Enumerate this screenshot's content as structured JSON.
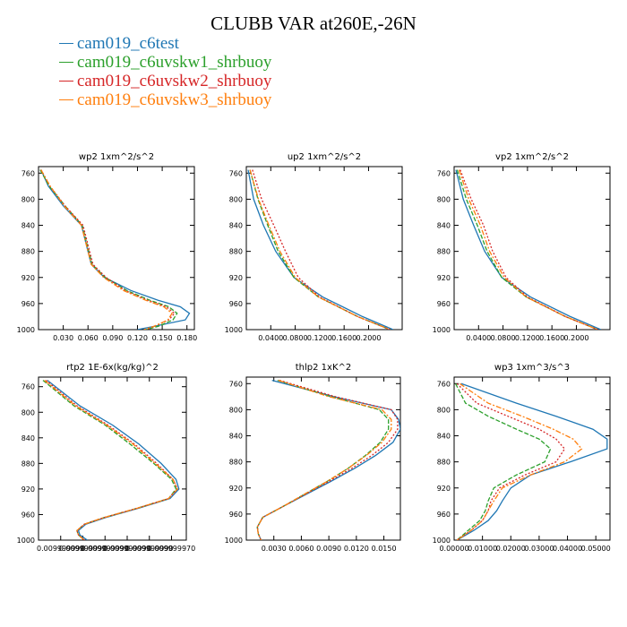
{
  "title": "CLUBB VAR at260E,-26N",
  "legend": [
    {
      "label": "cam019_c6test",
      "color": "#1f77b4"
    },
    {
      "label": "cam019_c6uvskw1_shrbuoy",
      "color": "#2ca02c"
    },
    {
      "label": "cam019_c6uvskw2_shrbuoy",
      "color": "#d62728"
    },
    {
      "label": "cam019_c6uvskw3_shrbuoy",
      "color": "#ff7f0e"
    }
  ],
  "chart_data": [
    {
      "type": "line",
      "title": "wp2   1xm^2/s^2",
      "y_ticks": [
        760,
        800,
        840,
        880,
        920,
        960,
        1000
      ],
      "ylim": [
        750,
        1000
      ],
      "y_reversed": true,
      "xlim": [
        0.0,
        0.189
      ],
      "x_ticks": [
        0.03,
        0.06,
        0.09,
        0.12,
        0.15,
        0.18
      ],
      "x_tick_labels": [
        "0.030",
        "0.060",
        "0.090",
        "0.120",
        "0.150",
        "0.180"
      ],
      "y": [
        755,
        780,
        810,
        840,
        870,
        900,
        920,
        940,
        955,
        965,
        975,
        985,
        995,
        1000
      ],
      "series": [
        {
          "name": "cam019_c6test",
          "x": [
            0.003,
            0.012,
            0.03,
            0.052,
            0.058,
            0.064,
            0.08,
            0.112,
            0.145,
            0.172,
            0.183,
            0.178,
            0.14,
            0.12
          ]
        },
        {
          "name": "cam019_c6uvskw1_shrbuoy",
          "x": [
            0.002,
            0.013,
            0.032,
            0.053,
            0.059,
            0.065,
            0.081,
            0.107,
            0.135,
            0.158,
            0.168,
            0.163,
            0.145,
            0.13
          ]
        },
        {
          "name": "cam019_c6uvskw2_shrbuoy",
          "x": [
            0.003,
            0.014,
            0.032,
            0.054,
            0.06,
            0.066,
            0.082,
            0.105,
            0.132,
            0.155,
            0.165,
            0.158,
            0.14,
            0.13
          ]
        },
        {
          "name": "cam019_c6uvskw3_shrbuoy",
          "x": [
            0.003,
            0.014,
            0.031,
            0.052,
            0.058,
            0.064,
            0.079,
            0.103,
            0.13,
            0.152,
            0.162,
            0.157,
            0.14,
            0.128
          ]
        }
      ]
    },
    {
      "type": "line",
      "title": "up2   1xm^2/s^2",
      "y_ticks": [
        760,
        800,
        840,
        880,
        920,
        960,
        1000
      ],
      "ylim": [
        750,
        1000
      ],
      "y_reversed": true,
      "xlim": [
        0.0,
        0.255
      ],
      "x_ticks": [
        0.04,
        0.08,
        0.12,
        0.16,
        0.2
      ],
      "x_tick_labels": [
        "0.0400",
        "0.0800",
        "0.1200",
        "0.1600",
        "0.2000"
      ],
      "y": [
        755,
        800,
        840,
        880,
        920,
        950,
        980,
        1000
      ],
      "series": [
        {
          "name": "cam019_c6test",
          "x": [
            0.003,
            0.012,
            0.028,
            0.048,
            0.078,
            0.125,
            0.19,
            0.24
          ]
        },
        {
          "name": "cam019_c6uvskw1_shrbuoy",
          "x": [
            0.006,
            0.019,
            0.035,
            0.052,
            0.078,
            0.118,
            0.182,
            0.235
          ]
        },
        {
          "name": "cam019_c6uvskw2_shrbuoy",
          "x": [
            0.01,
            0.025,
            0.045,
            0.064,
            0.085,
            0.12,
            0.182,
            0.235
          ]
        },
        {
          "name": "cam019_c6uvskw3_shrbuoy",
          "x": [
            0.006,
            0.02,
            0.037,
            0.055,
            0.08,
            0.118,
            0.182,
            0.235
          ]
        }
      ]
    },
    {
      "type": "line",
      "title": "vp2   1xm^2/s^2",
      "y_ticks": [
        760,
        800,
        840,
        880,
        920,
        960,
        1000
      ],
      "ylim": [
        750,
        1000
      ],
      "y_reversed": true,
      "xlim": [
        0.0,
        0.255
      ],
      "x_ticks": [
        0.04,
        0.08,
        0.12,
        0.16,
        0.2
      ],
      "x_tick_labels": [
        "0.0400",
        "0.0800",
        "0.1200",
        "0.1600",
        "0.2000"
      ],
      "y": [
        755,
        800,
        840,
        880,
        920,
        950,
        980,
        1000
      ],
      "series": [
        {
          "name": "cam019_c6test",
          "x": [
            0.003,
            0.015,
            0.032,
            0.05,
            0.078,
            0.125,
            0.19,
            0.24
          ]
        },
        {
          "name": "cam019_c6uvskw1_shrbuoy",
          "x": [
            0.005,
            0.02,
            0.038,
            0.054,
            0.078,
            0.118,
            0.182,
            0.235
          ]
        },
        {
          "name": "cam019_c6uvskw2_shrbuoy",
          "x": [
            0.01,
            0.028,
            0.048,
            0.063,
            0.085,
            0.12,
            0.182,
            0.235
          ]
        },
        {
          "name": "cam019_c6uvskw3_shrbuoy",
          "x": [
            0.008,
            0.024,
            0.043,
            0.058,
            0.082,
            0.118,
            0.182,
            0.235
          ]
        }
      ]
    },
    {
      "type": "line",
      "title": "rtp2   1E-6x(kg/kg)^2",
      "y_ticks": [
        760,
        800,
        840,
        880,
        920,
        960,
        1000
      ],
      "ylim": [
        745,
        1000
      ],
      "y_reversed": true,
      "xlim": [
        0.0,
        1.0
      ],
      "x_ticks": [
        0.15,
        0.3,
        0.45,
        0.6,
        0.75,
        0.9
      ],
      "x_tick_labels": [
        "0.009999990",
        "0.009999990",
        "0.009999990",
        "0.009999990",
        "0.009999990",
        "0.009999970"
      ],
      "y": [
        750,
        790,
        820,
        850,
        880,
        905,
        920,
        935,
        950,
        965,
        975,
        985,
        992,
        1000
      ],
      "series": [
        {
          "name": "cam019_c6test",
          "x": [
            0.06,
            0.28,
            0.5,
            0.68,
            0.83,
            0.93,
            0.95,
            0.89,
            0.68,
            0.45,
            0.32,
            0.27,
            0.28,
            0.33
          ]
        },
        {
          "name": "cam019_c6uvskw1_shrbuoy",
          "x": [
            0.03,
            0.24,
            0.45,
            0.62,
            0.78,
            0.9,
            0.93,
            0.88,
            0.67,
            0.44,
            0.31,
            0.26,
            0.27,
            0.31
          ]
        },
        {
          "name": "cam019_c6uvskw2_shrbuoy",
          "x": [
            0.05,
            0.26,
            0.47,
            0.65,
            0.8,
            0.91,
            0.94,
            0.88,
            0.67,
            0.44,
            0.31,
            0.26,
            0.27,
            0.31
          ]
        },
        {
          "name": "cam019_c6uvskw3_shrbuoy",
          "x": [
            0.04,
            0.25,
            0.46,
            0.64,
            0.79,
            0.91,
            0.94,
            0.88,
            0.67,
            0.44,
            0.31,
            0.26,
            0.27,
            0.31
          ]
        }
      ]
    },
    {
      "type": "line",
      "title": "thlp2   1xK^2",
      "y_ticks": [
        760,
        800,
        840,
        880,
        920,
        960,
        1000
      ],
      "ylim": [
        750,
        1000
      ],
      "y_reversed": true,
      "xlim": [
        0.0,
        0.0168
      ],
      "x_ticks": [
        0.003,
        0.006,
        0.009,
        0.012,
        0.015
      ],
      "x_tick_labels": [
        "0.0030",
        "0.0060",
        "0.0090",
        "0.0120",
        "0.0150"
      ],
      "y": [
        755,
        780,
        800,
        815,
        830,
        850,
        870,
        890,
        910,
        930,
        950,
        965,
        980,
        990,
        1000
      ],
      "series": [
        {
          "name": "cam019_c6test",
          "x": [
            0.0028,
            0.0095,
            0.0158,
            0.0166,
            0.0168,
            0.016,
            0.0141,
            0.0118,
            0.0092,
            0.0065,
            0.0038,
            0.0018,
            0.0012,
            0.0013,
            0.0016
          ]
        },
        {
          "name": "cam019_c6uvskw1_shrbuoy",
          "x": [
            0.0034,
            0.0092,
            0.0145,
            0.0155,
            0.0155,
            0.0146,
            0.013,
            0.0111,
            0.0088,
            0.0063,
            0.0038,
            0.0018,
            0.0012,
            0.0013,
            0.0016
          ]
        },
        {
          "name": "cam019_c6uvskw2_shrbuoy",
          "x": [
            0.0036,
            0.0097,
            0.0158,
            0.0165,
            0.0165,
            0.0155,
            0.0137,
            0.0115,
            0.009,
            0.0064,
            0.0038,
            0.0018,
            0.0012,
            0.0013,
            0.0016
          ]
        },
        {
          "name": "cam019_c6uvskw3_shrbuoy",
          "x": [
            0.0035,
            0.009,
            0.0148,
            0.0158,
            0.0158,
            0.0148,
            0.0131,
            0.0111,
            0.0088,
            0.0063,
            0.0038,
            0.0018,
            0.0012,
            0.0013,
            0.0016
          ]
        }
      ]
    },
    {
      "type": "line",
      "title": "wp3   1xm^3/s^3",
      "y_ticks": [
        760,
        800,
        840,
        880,
        920,
        960,
        1000
      ],
      "ylim": [
        750,
        1000
      ],
      "y_reversed": true,
      "xlim": [
        0.0,
        0.055
      ],
      "x_ticks": [
        0.0,
        0.01,
        0.02,
        0.03,
        0.04,
        0.05
      ],
      "x_tick_labels": [
        "0.00000",
        "0.01000",
        "0.02000",
        "0.03000",
        "0.04000",
        "0.05000"
      ],
      "y": [
        760,
        790,
        810,
        830,
        845,
        860,
        880,
        900,
        920,
        940,
        955,
        970,
        985,
        1000
      ],
      "series": [
        {
          "name": "cam019_c6test",
          "x": [
            0.0025,
            0.022,
            0.036,
            0.049,
            0.054,
            0.054,
            0.041,
            0.027,
            0.02,
            0.017,
            0.015,
            0.012,
            0.007,
            0.001
          ]
        },
        {
          "name": "cam019_c6uvskw1_shrbuoy",
          "x": [
            0.0005,
            0.004,
            0.012,
            0.022,
            0.03,
            0.034,
            0.032,
            0.022,
            0.014,
            0.012,
            0.011,
            0.009,
            0.005,
            0.001
          ]
        },
        {
          "name": "cam019_c6uvskw2_shrbuoy",
          "x": [
            0.001,
            0.008,
            0.019,
            0.03,
            0.036,
            0.039,
            0.036,
            0.025,
            0.016,
            0.013,
            0.012,
            0.01,
            0.006,
            0.001
          ]
        },
        {
          "name": "cam019_c6uvskw3_shrbuoy",
          "x": [
            0.002,
            0.012,
            0.024,
            0.035,
            0.042,
            0.045,
            0.039,
            0.027,
            0.017,
            0.014,
            0.012,
            0.01,
            0.006,
            0.001
          ]
        }
      ]
    }
  ]
}
